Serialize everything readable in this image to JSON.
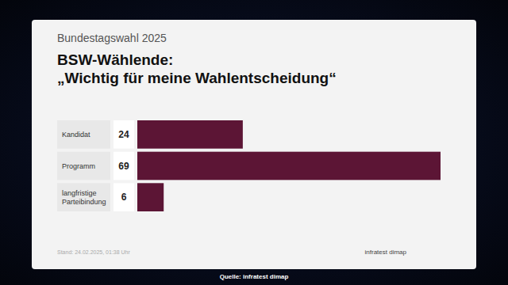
{
  "chart_data": {
    "type": "bar",
    "orientation": "horizontal",
    "subtitle": "Bundestagswahl 2025",
    "title": [
      "BSW-Wählende:",
      "„Wichtig für meine Wahlentscheidung“"
    ],
    "categories": [
      "Kandidat",
      "Programm",
      "langfristige Parteibindung"
    ],
    "values": [
      24,
      69,
      6
    ],
    "color": "#5c1535",
    "xlim": [
      0,
      69
    ],
    "data_labels": true,
    "tick_labels": false,
    "grid": false,
    "annotations": [
      "Stand: 24.02.2025, 01:38 Uhr",
      "infratest dimap",
      "Quelle: infratest dimap"
    ]
  }
}
